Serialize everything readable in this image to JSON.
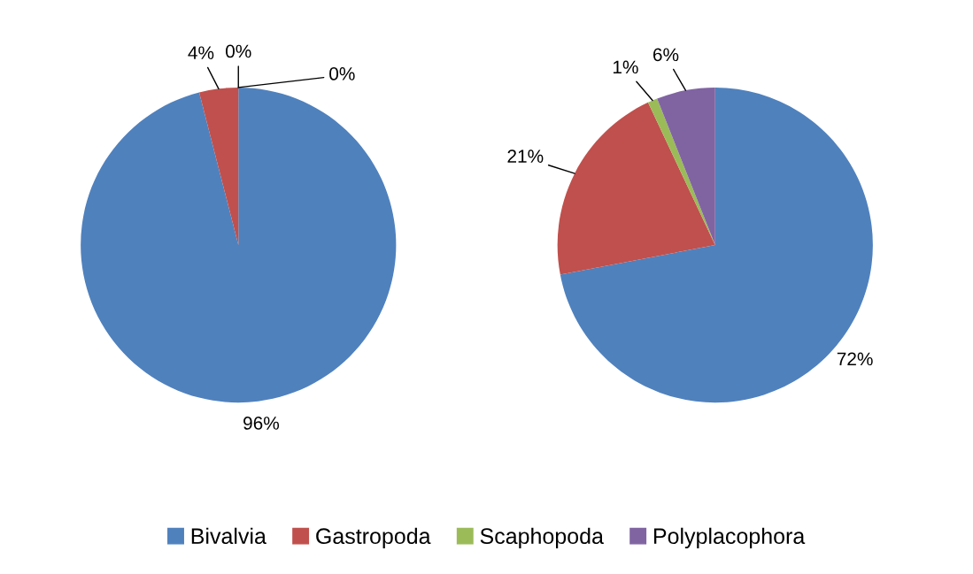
{
  "chart_data": [
    {
      "type": "pie",
      "categories": [
        "Bivalvia",
        "Gastropoda",
        "Scaphopoda",
        "Polyplacophora"
      ],
      "values": [
        96,
        4,
        0,
        0
      ],
      "colors": [
        "#4f81bd",
        "#c0504d",
        "#9bbb59",
        "#8064a2"
      ],
      "value_labels": [
        "96%",
        "4%",
        "0%",
        "0%"
      ],
      "legend": "bottom"
    },
    {
      "type": "pie",
      "categories": [
        null,
        null,
        null,
        null
      ],
      "values": [
        72,
        21,
        1,
        6
      ],
      "colors": [
        "#4f81bd",
        "#c0504d",
        "#9bbb59",
        "#8064a2"
      ],
      "value_labels": [
        "72%",
        "21%",
        "1%",
        "6%"
      ]
    }
  ]
}
